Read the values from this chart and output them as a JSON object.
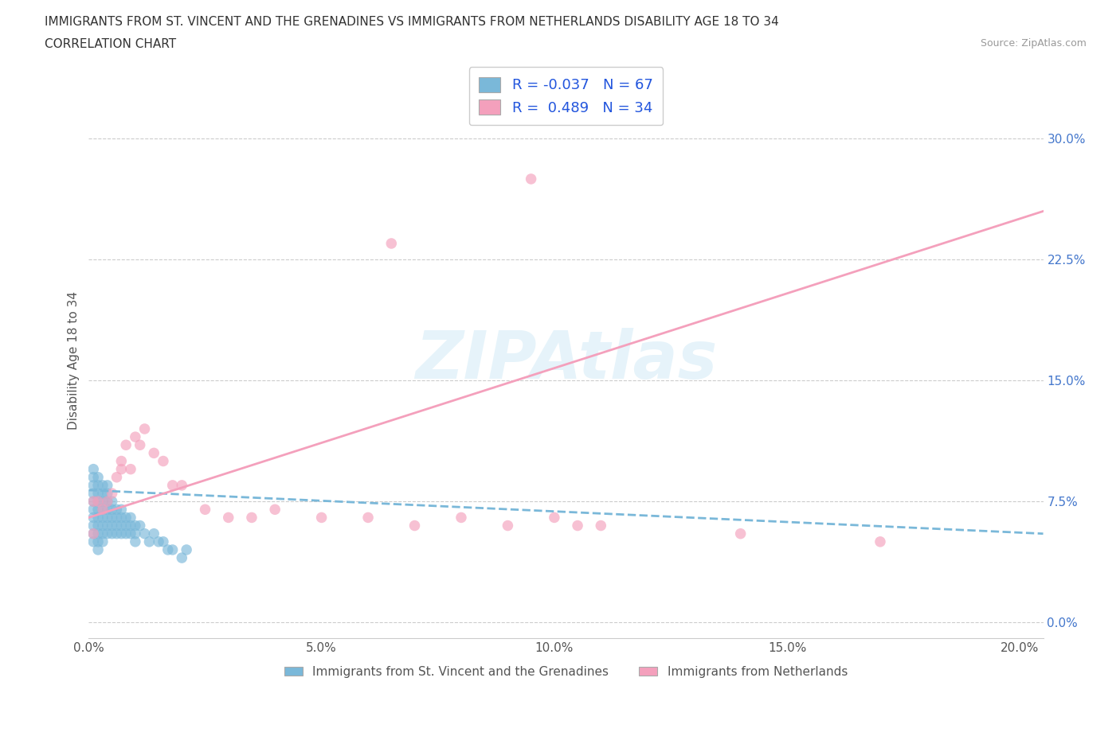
{
  "title_line1": "IMMIGRANTS FROM ST. VINCENT AND THE GRENADINES VS IMMIGRANTS FROM NETHERLANDS DISABILITY AGE 18 TO 34",
  "title_line2": "CORRELATION CHART",
  "source": "Source: ZipAtlas.com",
  "ylabel": "Disability Age 18 to 34",
  "xlim": [
    0.0,
    0.205
  ],
  "ylim": [
    -0.01,
    0.335
  ],
  "yticks": [
    0.0,
    0.075,
    0.15,
    0.225,
    0.3
  ],
  "ytick_labels": [
    "0.0%",
    "7.5%",
    "15.0%",
    "22.5%",
    "30.0%"
  ],
  "xticks": [
    0.0,
    0.05,
    0.1,
    0.15,
    0.2
  ],
  "xtick_labels": [
    "0.0%",
    "5.0%",
    "10.0%",
    "15.0%",
    "20.0%"
  ],
  "watermark": "ZIPAtlas",
  "legend_R1": "-0.037",
  "legend_N1": "67",
  "legend_R2": "0.489",
  "legend_N2": "34",
  "color_blue": "#7ab8d9",
  "color_pink": "#f4a0bc",
  "legend_label1": "Immigrants from St. Vincent and the Grenadines",
  "legend_label2": "Immigrants from Netherlands",
  "blue_x": [
    0.001,
    0.001,
    0.001,
    0.001,
    0.001,
    0.001,
    0.001,
    0.001,
    0.001,
    0.001,
    0.002,
    0.002,
    0.002,
    0.002,
    0.002,
    0.002,
    0.002,
    0.002,
    0.002,
    0.002,
    0.003,
    0.003,
    0.003,
    0.003,
    0.003,
    0.003,
    0.003,
    0.003,
    0.004,
    0.004,
    0.004,
    0.004,
    0.004,
    0.004,
    0.004,
    0.005,
    0.005,
    0.005,
    0.005,
    0.005,
    0.006,
    0.006,
    0.006,
    0.006,
    0.007,
    0.007,
    0.007,
    0.007,
    0.008,
    0.008,
    0.008,
    0.009,
    0.009,
    0.009,
    0.01,
    0.01,
    0.01,
    0.011,
    0.012,
    0.013,
    0.014,
    0.015,
    0.016,
    0.017,
    0.018,
    0.02,
    0.021
  ],
  "blue_y": [
    0.055,
    0.06,
    0.065,
    0.07,
    0.075,
    0.08,
    0.085,
    0.09,
    0.095,
    0.05,
    0.055,
    0.06,
    0.065,
    0.07,
    0.075,
    0.08,
    0.085,
    0.09,
    0.05,
    0.045,
    0.055,
    0.06,
    0.065,
    0.07,
    0.075,
    0.08,
    0.085,
    0.05,
    0.055,
    0.06,
    0.065,
    0.07,
    0.075,
    0.08,
    0.085,
    0.055,
    0.06,
    0.065,
    0.07,
    0.075,
    0.055,
    0.06,
    0.065,
    0.07,
    0.055,
    0.06,
    0.065,
    0.07,
    0.055,
    0.06,
    0.065,
    0.055,
    0.06,
    0.065,
    0.055,
    0.06,
    0.05,
    0.06,
    0.055,
    0.05,
    0.055,
    0.05,
    0.05,
    0.045,
    0.045,
    0.04,
    0.045
  ],
  "pink_x": [
    0.001,
    0.001,
    0.002,
    0.003,
    0.004,
    0.005,
    0.006,
    0.007,
    0.007,
    0.008,
    0.009,
    0.01,
    0.011,
    0.012,
    0.014,
    0.016,
    0.018,
    0.02,
    0.025,
    0.03,
    0.035,
    0.04,
    0.05,
    0.06,
    0.065,
    0.07,
    0.08,
    0.09,
    0.095,
    0.1,
    0.105,
    0.11,
    0.14,
    0.17
  ],
  "pink_y": [
    0.075,
    0.055,
    0.075,
    0.07,
    0.075,
    0.08,
    0.09,
    0.095,
    0.1,
    0.11,
    0.095,
    0.115,
    0.11,
    0.12,
    0.105,
    0.1,
    0.085,
    0.085,
    0.07,
    0.065,
    0.065,
    0.07,
    0.065,
    0.065,
    0.235,
    0.06,
    0.065,
    0.06,
    0.275,
    0.065,
    0.06,
    0.06,
    0.055,
    0.05
  ],
  "pink_line_x0": 0.0,
  "pink_line_y0": 0.065,
  "pink_line_x1": 0.205,
  "pink_line_y1": 0.255,
  "blue_line_x0": 0.0,
  "blue_line_y0": 0.082,
  "blue_line_x1": 0.205,
  "blue_line_y1": 0.055
}
